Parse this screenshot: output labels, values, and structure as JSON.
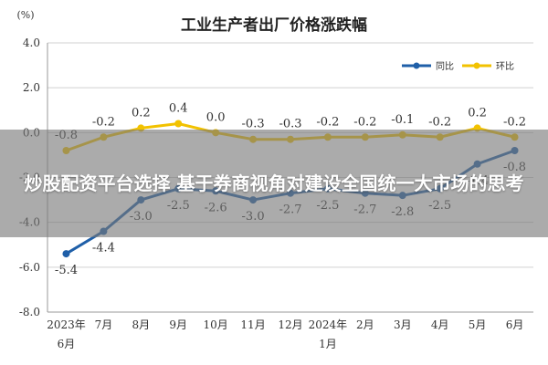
{
  "chart_data": {
    "type": "line",
    "title": "工业生产者出厂价格涨跌幅",
    "unit_label": "(%)",
    "categories": [
      [
        "2023年",
        "6月"
      ],
      [
        "7月"
      ],
      [
        "8月"
      ],
      [
        "9月"
      ],
      [
        "10月"
      ],
      [
        "11月"
      ],
      [
        "12月"
      ],
      [
        "2024年",
        "1月"
      ],
      [
        "2月"
      ],
      [
        "3月"
      ],
      [
        "4月"
      ],
      [
        "5月"
      ],
      [
        "6月"
      ]
    ],
    "ylim": [
      -8.0,
      4.0
    ],
    "yticks": [
      "4.0",
      "2.0",
      "0.0",
      "-2.0",
      "-4.0",
      "-6.0",
      "-8.0"
    ],
    "grid": true,
    "legend_position": "top-right",
    "series": [
      {
        "name": "同比",
        "color": "#1f5fa8",
        "values": [
          -5.4,
          -4.4,
          -3.0,
          -2.5,
          -2.6,
          -3.0,
          -2.7,
          -2.5,
          -2.7,
          -2.8,
          -2.5,
          -1.4,
          -0.8
        ],
        "labels": [
          "-5.4",
          "-4.4",
          "-3.0",
          "-2.5",
          "-2.6",
          "-3.0",
          "-2.7",
          "-2.5",
          "-2.7",
          "-2.8",
          "-2.5",
          "-1.4",
          "-0.8"
        ]
      },
      {
        "name": "环比",
        "color": "#f2c200",
        "values": [
          -0.8,
          -0.2,
          0.2,
          0.4,
          0.0,
          -0.3,
          -0.3,
          -0.2,
          -0.2,
          -0.1,
          -0.2,
          0.2,
          -0.2
        ],
        "labels": [
          "-0.8",
          "-0.2",
          "0.2",
          "0.4",
          "0.0",
          "-0.3",
          "-0.3",
          "-0.2",
          "-0.2",
          "-0.1",
          "-0.2",
          "0.2",
          "-0.2"
        ]
      }
    ]
  },
  "banner": {
    "text": "炒股配资平台选择 基于券商视角对建设全国统一大市场的思考"
  }
}
